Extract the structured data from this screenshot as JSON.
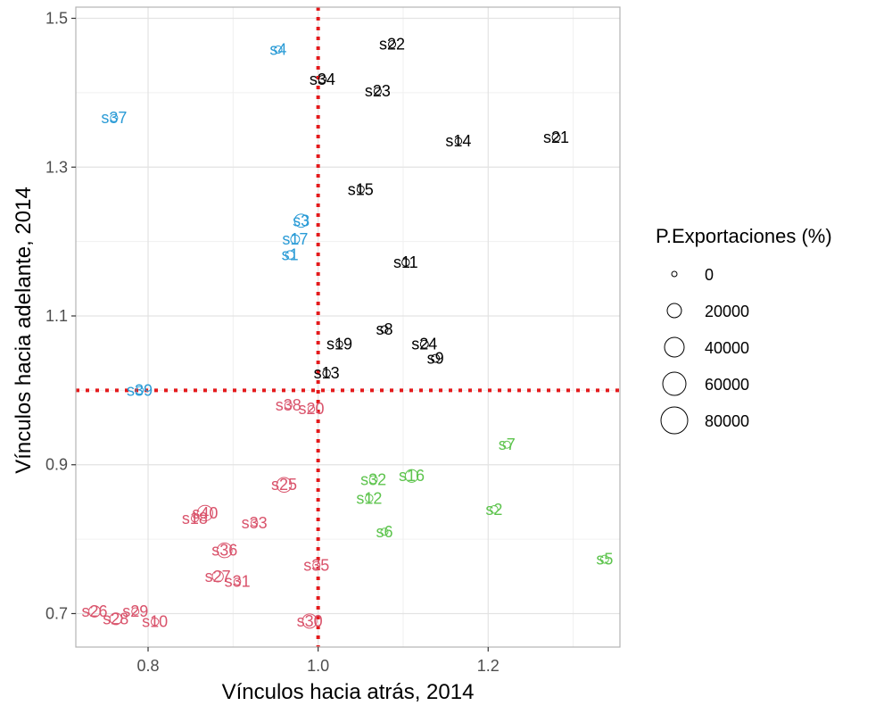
{
  "chart_data": {
    "type": "scatter",
    "xlabel": "Vínculos hacia atrás, 2014",
    "ylabel": "Vínculos hacia adelante, 2014",
    "xlim": [
      0.715,
      1.355
    ],
    "ylim": [
      0.655,
      1.515
    ],
    "xticks": [
      "0.8",
      "1.0",
      "1.2"
    ],
    "yticks": [
      "0.7",
      "0.9",
      "1.1",
      "1.3",
      "1.5"
    ],
    "grid": true,
    "reference_lines": {
      "x": 1.0,
      "y": 1.0,
      "color": "#e41a1c",
      "style": "dotted"
    },
    "size_legend": {
      "title": "P.Exportaciones (%)",
      "placement": "right",
      "entries": [
        "0",
        "20000",
        "40000",
        "60000",
        "80000"
      ]
    },
    "colors": {
      "blue": "#2a9bd6",
      "black": "#000000",
      "pink": "#d9536b",
      "green": "#5ec44e"
    },
    "points": [
      {
        "label": "s4",
        "x": 0.953,
        "y": 1.458,
        "size": 1800,
        "color": "blue"
      },
      {
        "label": "s37",
        "x": 0.76,
        "y": 1.366,
        "size": 1500,
        "color": "blue"
      },
      {
        "label": "s3",
        "x": 0.98,
        "y": 1.228,
        "size": 16000,
        "color": "blue"
      },
      {
        "label": "s17",
        "x": 0.973,
        "y": 1.203,
        "size": 4000,
        "color": "blue"
      },
      {
        "label": "s1",
        "x": 0.967,
        "y": 1.182,
        "size": 3500,
        "color": "blue"
      },
      {
        "label": "s39",
        "x": 0.79,
        "y": 1.0,
        "size": 2000,
        "color": "blue"
      },
      {
        "label": "s22",
        "x": 1.087,
        "y": 1.465,
        "size": 1500,
        "color": "black"
      },
      {
        "label": "s34",
        "x": 1.005,
        "y": 1.418,
        "size": 2000,
        "color": "black"
      },
      {
        "label": "s23",
        "x": 1.07,
        "y": 1.402,
        "size": 1500,
        "color": "black"
      },
      {
        "label": "s14",
        "x": 1.165,
        "y": 1.335,
        "size": 1000,
        "color": "black"
      },
      {
        "label": "s21",
        "x": 1.28,
        "y": 1.34,
        "size": 2500,
        "color": "black"
      },
      {
        "label": "s15",
        "x": 1.05,
        "y": 1.27,
        "size": 1500,
        "color": "black"
      },
      {
        "label": "s11",
        "x": 1.103,
        "y": 1.172,
        "size": 2000,
        "color": "black"
      },
      {
        "label": "s8",
        "x": 1.078,
        "y": 1.082,
        "size": 1500,
        "color": "black"
      },
      {
        "label": "s19",
        "x": 1.025,
        "y": 1.062,
        "size": 1000,
        "color": "black"
      },
      {
        "label": "s24",
        "x": 1.125,
        "y": 1.062,
        "size": 2500,
        "color": "black"
      },
      {
        "label": "s9",
        "x": 1.138,
        "y": 1.043,
        "size": 2500,
        "color": "black"
      },
      {
        "label": "s13",
        "x": 1.01,
        "y": 1.023,
        "size": 2000,
        "color": "black"
      },
      {
        "label": "s38",
        "x": 0.965,
        "y": 0.98,
        "size": 1500,
        "color": "pink"
      },
      {
        "label": "s20",
        "x": 0.992,
        "y": 0.975,
        "size": 1000,
        "color": "pink"
      },
      {
        "label": "s25",
        "x": 0.96,
        "y": 0.873,
        "size": 22000,
        "color": "pink"
      },
      {
        "label": "s40",
        "x": 0.867,
        "y": 0.835,
        "size": 25000,
        "color": "pink"
      },
      {
        "label": "s18",
        "x": 0.855,
        "y": 0.828,
        "size": 1500,
        "color": "pink"
      },
      {
        "label": "s33",
        "x": 0.925,
        "y": 0.822,
        "size": 1000,
        "color": "pink"
      },
      {
        "label": "s36",
        "x": 0.89,
        "y": 0.785,
        "size": 22000,
        "color": "pink"
      },
      {
        "label": "s35",
        "x": 0.998,
        "y": 0.765,
        "size": 1500,
        "color": "pink"
      },
      {
        "label": "s27",
        "x": 0.882,
        "y": 0.75,
        "size": 9000,
        "color": "pink"
      },
      {
        "label": "s31",
        "x": 0.905,
        "y": 0.743,
        "size": 1000,
        "color": "pink"
      },
      {
        "label": "s26",
        "x": 0.737,
        "y": 0.703,
        "size": 10000,
        "color": "pink"
      },
      {
        "label": "s29",
        "x": 0.785,
        "y": 0.703,
        "size": 1500,
        "color": "pink"
      },
      {
        "label": "s28",
        "x": 0.762,
        "y": 0.693,
        "size": 11000,
        "color": "pink"
      },
      {
        "label": "s10",
        "x": 0.808,
        "y": 0.689,
        "size": 2000,
        "color": "pink"
      },
      {
        "label": "s30",
        "x": 0.99,
        "y": 0.69,
        "size": 20000,
        "color": "pink"
      },
      {
        "label": "s7",
        "x": 1.222,
        "y": 0.927,
        "size": 1500,
        "color": "green"
      },
      {
        "label": "s32",
        "x": 1.065,
        "y": 0.88,
        "size": 2500,
        "color": "green"
      },
      {
        "label": "s16",
        "x": 1.11,
        "y": 0.885,
        "size": 14000,
        "color": "green"
      },
      {
        "label": "s12",
        "x": 1.06,
        "y": 0.855,
        "size": 2000,
        "color": "green"
      },
      {
        "label": "s2",
        "x": 1.207,
        "y": 0.84,
        "size": 2000,
        "color": "green"
      },
      {
        "label": "s6",
        "x": 1.078,
        "y": 0.81,
        "size": 1500,
        "color": "green"
      },
      {
        "label": "s5",
        "x": 1.337,
        "y": 0.773,
        "size": 2500,
        "color": "green"
      }
    ]
  }
}
